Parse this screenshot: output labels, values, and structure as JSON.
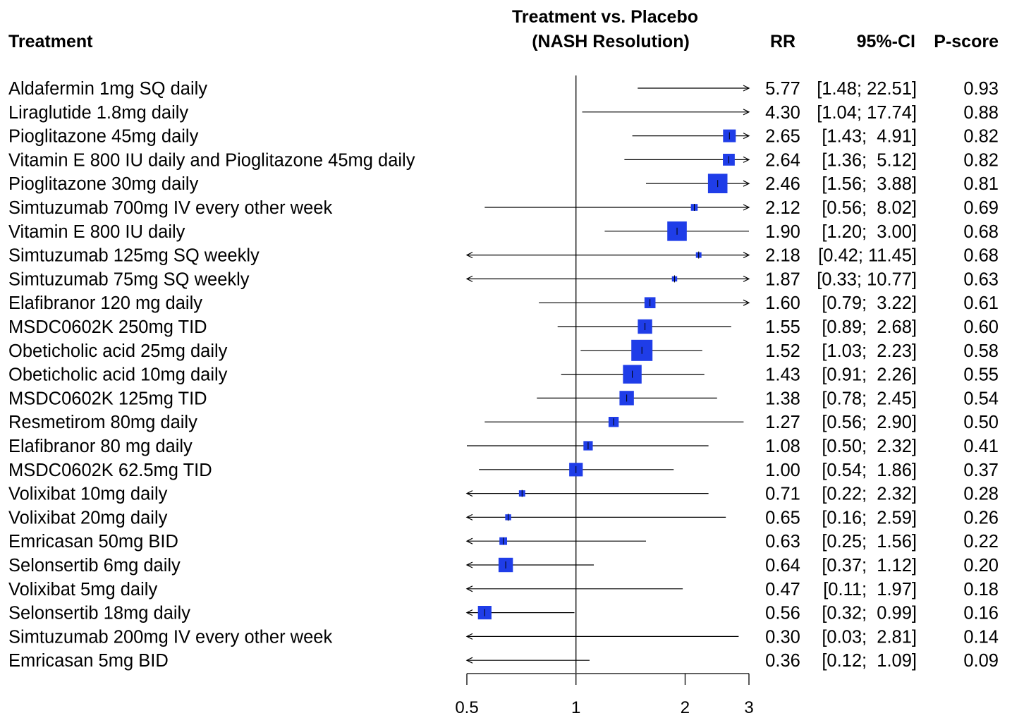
{
  "chart_data": {
    "type": "forest",
    "title_lines": [
      "Treatment vs. Placebo",
      "(NASH Resolution)"
    ],
    "column_headers": {
      "treatment": "Treatment",
      "rr": "RR",
      "ci": "95%-CI",
      "pscore": "P-score"
    },
    "x_scale": "log",
    "xlim": [
      0.5,
      3
    ],
    "x_ticks": [
      0.5,
      1,
      2,
      3
    ],
    "x_tick_labels": [
      "0.5",
      "1",
      "2",
      "3"
    ],
    "reference_line": 1,
    "marker_color": "#1f3de8",
    "rows": [
      {
        "treatment": "Aldafermin 1mg SQ daily",
        "rr": 5.77,
        "lower": 1.48,
        "upper": 22.51,
        "rr_text": "5.77",
        "ci_text": "[1.48; 22.51]",
        "pscore": "0.93",
        "weight": 0
      },
      {
        "treatment": "Liraglutide 1.8mg daily",
        "rr": 4.3,
        "lower": 1.04,
        "upper": 17.74,
        "rr_text": "4.30",
        "ci_text": "[1.04; 17.74]",
        "pscore": "0.88",
        "weight": 0
      },
      {
        "treatment": "Pioglitazone 45mg daily",
        "rr": 2.65,
        "lower": 1.43,
        "upper": 4.91,
        "rr_text": "2.65",
        "ci_text": "[1.43;  4.91]",
        "pscore": "0.82",
        "weight": 0.5
      },
      {
        "treatment": "Vitamin E 800 IU daily and Pioglitazone 45mg daily",
        "rr": 2.64,
        "lower": 1.36,
        "upper": 5.12,
        "rr_text": "2.64",
        "ci_text": "[1.36;  5.12]",
        "pscore": "0.82",
        "weight": 0.45
      },
      {
        "treatment": "Pioglitazone 30mg daily",
        "rr": 2.46,
        "lower": 1.56,
        "upper": 3.88,
        "rr_text": "2.46",
        "ci_text": "[1.56;  3.88]",
        "pscore": "0.81",
        "weight": 0.9
      },
      {
        "treatment": "Simtuzumab 700mg IV every other week",
        "rr": 2.12,
        "lower": 0.56,
        "upper": 8.02,
        "rr_text": "2.12",
        "ci_text": "[0.56;  8.02]",
        "pscore": "0.69",
        "weight": 0.15
      },
      {
        "treatment": "Vitamin E 800 IU daily",
        "rr": 1.9,
        "lower": 1.2,
        "upper": 3.0,
        "rr_text": "1.90",
        "ci_text": "[1.20;  3.00]",
        "pscore": "0.68",
        "weight": 0.9
      },
      {
        "treatment": "Simtuzumab 125mg SQ weekly",
        "rr": 2.18,
        "lower": 0.42,
        "upper": 11.45,
        "rr_text": "2.18",
        "ci_text": "[0.42; 11.45]",
        "pscore": "0.68",
        "weight": 0.08
      },
      {
        "treatment": "Simtuzumab 75mg SQ weekly",
        "rr": 1.87,
        "lower": 0.33,
        "upper": 10.77,
        "rr_text": "1.87",
        "ci_text": "[0.33; 10.77]",
        "pscore": "0.63",
        "weight": 0.06
      },
      {
        "treatment": "Elafibranor 120 mg daily",
        "rr": 1.6,
        "lower": 0.79,
        "upper": 3.22,
        "rr_text": "1.60",
        "ci_text": "[0.79;  3.22]",
        "pscore": "0.61",
        "weight": 0.4
      },
      {
        "treatment": "MSDC0602K 250mg TID",
        "rr": 1.55,
        "lower": 0.89,
        "upper": 2.68,
        "rr_text": "1.55",
        "ci_text": "[0.89;  2.68]",
        "pscore": "0.60",
        "weight": 0.6
      },
      {
        "treatment": "Obeticholic acid 25mg daily",
        "rr": 1.52,
        "lower": 1.03,
        "upper": 2.23,
        "rr_text": "1.52",
        "ci_text": "[1.03;  2.23]",
        "pscore": "0.58",
        "weight": 1.0
      },
      {
        "treatment": "Obeticholic acid 10mg daily",
        "rr": 1.43,
        "lower": 0.91,
        "upper": 2.26,
        "rr_text": "1.43",
        "ci_text": "[0.91;  2.26]",
        "pscore": "0.55",
        "weight": 0.85
      },
      {
        "treatment": "MSDC0602K 125mg TID",
        "rr": 1.38,
        "lower": 0.78,
        "upper": 2.45,
        "rr_text": "1.38",
        "ci_text": "[0.78;  2.45]",
        "pscore": "0.54",
        "weight": 0.6
      },
      {
        "treatment": "Resmetirom 80mg daily",
        "rr": 1.27,
        "lower": 0.56,
        "upper": 2.9,
        "rr_text": "1.27",
        "ci_text": "[0.56;  2.90]",
        "pscore": "0.50",
        "weight": 0.35
      },
      {
        "treatment": "Elafibranor 80 mg daily",
        "rr": 1.08,
        "lower": 0.5,
        "upper": 2.32,
        "rr_text": "1.08",
        "ci_text": "[0.50;  2.32]",
        "pscore": "0.41",
        "weight": 0.3
      },
      {
        "treatment": "MSDC0602K 62.5mg TID",
        "rr": 1.0,
        "lower": 0.54,
        "upper": 1.86,
        "rr_text": "1.00",
        "ci_text": "[0.54;  1.86]",
        "pscore": "0.37",
        "weight": 0.55
      },
      {
        "treatment": "Volixibat 10mg daily",
        "rr": 0.71,
        "lower": 0.22,
        "upper": 2.32,
        "rr_text": "0.71",
        "ci_text": "[0.22;  2.32]",
        "pscore": "0.28",
        "weight": 0.12
      },
      {
        "treatment": "Volixibat 20mg daily",
        "rr": 0.65,
        "lower": 0.16,
        "upper": 2.59,
        "rr_text": "0.65",
        "ci_text": "[0.16;  2.59]",
        "pscore": "0.26",
        "weight": 0.1
      },
      {
        "treatment": "Emricasan 50mg BID",
        "rr": 0.63,
        "lower": 0.25,
        "upper": 1.56,
        "rr_text": "0.63",
        "ci_text": "[0.25;  1.56]",
        "pscore": "0.22",
        "weight": 0.2
      },
      {
        "treatment": "Selonsertib 6mg daily",
        "rr": 0.64,
        "lower": 0.37,
        "upper": 1.12,
        "rr_text": "0.64",
        "ci_text": "[0.37;  1.12]",
        "pscore": "0.20",
        "weight": 0.6
      },
      {
        "treatment": "Volixibat 5mg daily",
        "rr": 0.47,
        "lower": 0.11,
        "upper": 1.97,
        "rr_text": "0.47",
        "ci_text": "[0.11;  1.97]",
        "pscore": "0.18",
        "weight": 0
      },
      {
        "treatment": "Selonsertib 18mg daily",
        "rr": 0.56,
        "lower": 0.32,
        "upper": 0.99,
        "rr_text": "0.56",
        "ci_text": "[0.32;  0.99]",
        "pscore": "0.16",
        "weight": 0.55
      },
      {
        "treatment": "Simtuzumab 200mg IV every other week",
        "rr": 0.3,
        "lower": 0.03,
        "upper": 2.81,
        "rr_text": "0.30",
        "ci_text": "[0.03;  2.81]",
        "pscore": "0.14",
        "weight": 0
      },
      {
        "treatment": "Emricasan 5mg BID",
        "rr": 0.36,
        "lower": 0.12,
        "upper": 1.09,
        "rr_text": "0.36",
        "ci_text": "[0.12;  1.09]",
        "pscore": "0.09",
        "weight": 0
      }
    ]
  }
}
